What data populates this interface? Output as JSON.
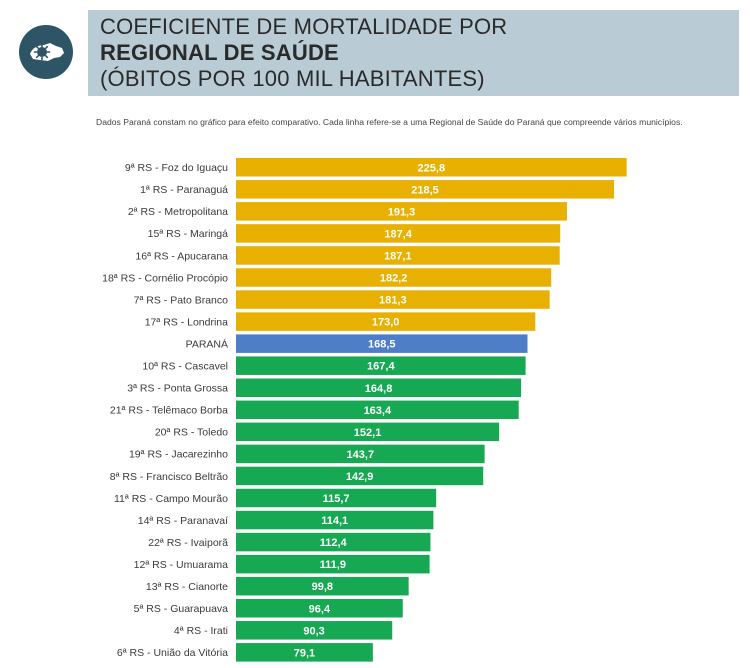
{
  "header": {
    "title_line_1": "COEFICIENTE DE MORTALIDADE POR",
    "title_line_2": "REGIONAL DE SAÚDE",
    "title_line_3": "(ÓBITOS POR 100 MIL HABITANTES)",
    "subtitle": "Dados Paraná constam no gráfico para efeito comparativo. Cada linha refere-se a uma Regional de Saúde do Paraná que compreende vários municípios.",
    "logo_icon": "virus-on-map-icon"
  },
  "colors": {
    "above": "#e8b000",
    "state": "#4d7ec7",
    "below": "#16a852",
    "title_panel": "#b9ccd5",
    "logo_circle": "#2d5566"
  },
  "chart_data": {
    "type": "bar",
    "orientation": "horizontal",
    "xlabel": "",
    "ylabel": "",
    "xlim": [
      0,
      240
    ],
    "grid": false,
    "categories": [
      "9ª RS - Foz do Iguaçu",
      "1ª RS - Paranaguá",
      "2ª RS - Metropolitana",
      "15ª RS - Maringá",
      "16ª RS - Apucarana",
      "18ª RS - Cornélio Procópio",
      "7ª RS - Pato Branco",
      "17ª RS - Londrina",
      "PARANÁ",
      "10ª RS - Cascavel",
      "3ª RS - Ponta Grossa",
      "21ª RS - Telêmaco Borba",
      "20ª RS - Toledo",
      "19ª RS - Jacarezinho",
      "8ª RS - Francisco Beltrão",
      "11ª RS - Campo Mourão",
      "14ª RS - Paranavaí",
      "22ª RS - Ivaiporã",
      "12ª RS - Umuarama",
      "13ª RS - Cianorte",
      "5ª RS - Guarapuava",
      "4ª RS - Irati",
      "6ª RS - União da Vitória"
    ],
    "values": [
      225.8,
      218.5,
      191.3,
      187.4,
      187.1,
      182.2,
      181.3,
      173.0,
      168.5,
      167.4,
      164.8,
      163.4,
      152.1,
      143.7,
      142.9,
      115.7,
      114.1,
      112.4,
      111.9,
      99.8,
      96.4,
      90.3,
      79.1
    ],
    "value_labels": [
      "225,8",
      "218,5",
      "191,3",
      "187,4",
      "187,1",
      "182,2",
      "181,3",
      "173,0",
      "168,5",
      "167,4",
      "164,8",
      "163,4",
      "152,1",
      "143,7",
      "142,9",
      "115,7",
      "114,1",
      "112,4",
      "111,9",
      "99,8",
      "96,4",
      "90,3",
      "79,1"
    ],
    "groups": [
      "above",
      "above",
      "above",
      "above",
      "above",
      "above",
      "above",
      "above",
      "state",
      "below",
      "below",
      "below",
      "below",
      "below",
      "below",
      "below",
      "below",
      "below",
      "below",
      "below",
      "below",
      "below",
      "below"
    ]
  }
}
